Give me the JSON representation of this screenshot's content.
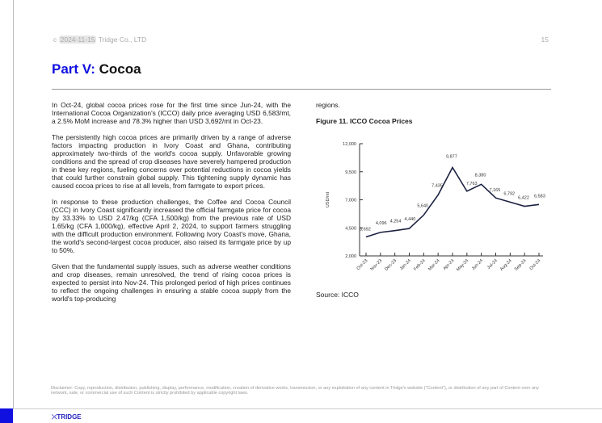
{
  "header": {
    "prefix": "c",
    "date": "2024-11-15",
    "company": "Tridge Co., LTD",
    "page": "15"
  },
  "title": {
    "part": "Part V:",
    "topic": "Cocoa"
  },
  "paragraphs": [
    "In Oct-24, global cocoa prices rose for the first time since Jun-24, with the International Cocoa Organization's (ICCO) daily price averaging USD 6,583/mt, a 2.5% MoM increase and 78.3% higher than USD 3,692/mt in Oct-23.",
    "The persistently high cocoa prices are primarily driven by a range of adverse factors impacting production in Ivory Coast and Ghana, contributing approximately two-thirds of the world's cocoa supply. Unfavorable growing conditions and the spread of crop diseases have severely hampered production in these key regions, fueling concerns over potential reductions in cocoa yields that could further constrain global supply. This tightening supply dynamic has caused cocoa prices to rise at all levels, from farmgate to export prices.",
    "In response to these production challenges, the Coffee and Cocoa Council (CCC) in Ivory Coast significantly increased the official farmgate price for cocoa by 33.33% to USD 2.47/kg (CFA 1,500/kg) from the previous rate of USD 1.65/kg (CFA 1,000/kg), effective April 2, 2024, to support farmers struggling with the difficult production environment. Following Ivory Coast's move, Ghana, the world's second-largest cocoa producer, also raised its farmgate price by up to 50%.",
    "Given that the fundamental supply issues, such as adverse weather conditions and crop diseases, remain unresolved, the trend of rising cocoa prices is expected to persist into Nov-24. This prolonged period of high prices continues to reflect the ongoing challenges in ensuring a stable cocoa supply from the world's top-producing"
  ],
  "right_continuation": "regions.",
  "figure_title": "Figure 11. ICCO Cocoa Prices",
  "source": "Source: ICCO",
  "chart_data": {
    "type": "line",
    "title": "Figure 11. ICCO Cocoa Prices",
    "ylabel": "USD/mt",
    "xlabel": "",
    "ylim": [
      2000,
      12000
    ],
    "yticks": [
      "2,000",
      "4,500",
      "7,000",
      "9,500",
      "12,000"
    ],
    "categories": [
      "Oct-23",
      "Nov-23",
      "Dec-23",
      "Jan-24",
      "Feb-24",
      "Mar-24",
      "Apr-24",
      "May-24",
      "Jun-24",
      "Jul-24",
      "Aug-24",
      "Sep-24",
      "Oct-24"
    ],
    "values": [
      3692,
      4096,
      4254,
      4440,
      5640,
      7435,
      9877,
      7763,
      8380,
      7165,
      6792,
      6422,
      6583
    ],
    "labels": [
      "3,692",
      "4,096",
      "4,254",
      "4,440",
      "5,640",
      "7,435",
      "9,877",
      "7,763",
      "8,380",
      "7,165",
      "6,792",
      "6,422",
      "6,583"
    ],
    "color": "#1b2140"
  },
  "disclaimer": "Disclaimer: Copy, reproduction, distribution, publishing, display, performance, modification, creation of derivative works, transmission, or any exploitation of any content in Tridge's website (\"Content\"), or distribution of any part of Content over any network, sale, or commercial use of such Content is strictly prohibited by applicable copyright laws.",
  "footer": {
    "logo": "TRIDGE"
  }
}
